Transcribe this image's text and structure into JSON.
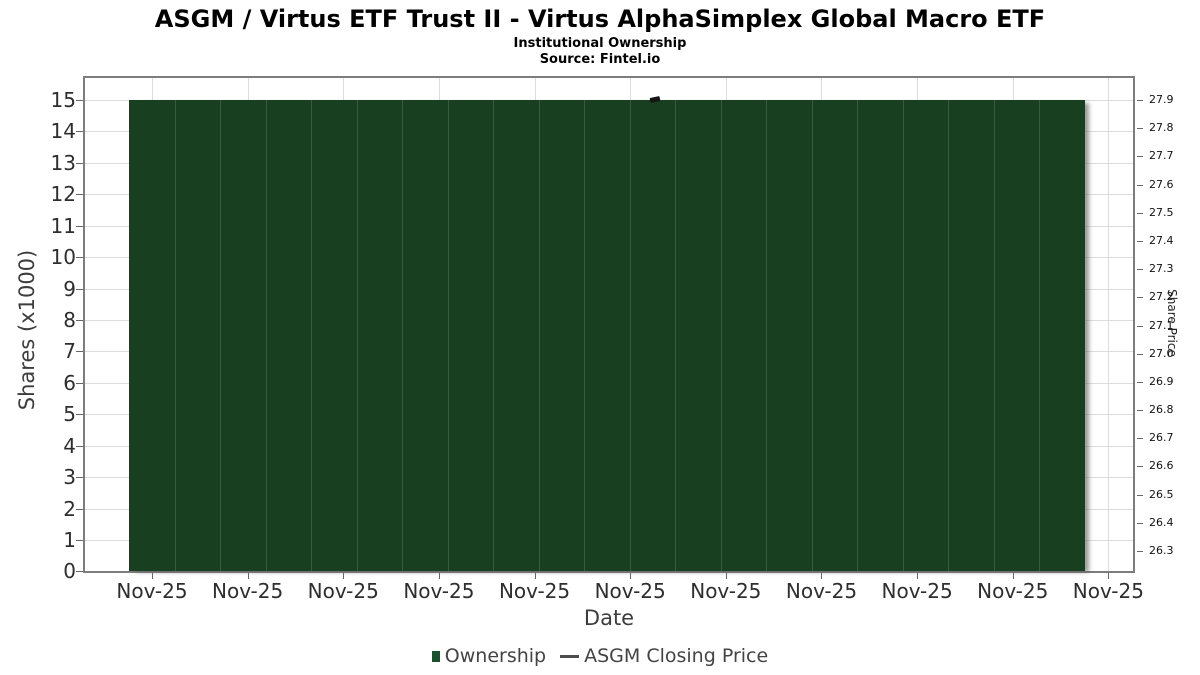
{
  "header": {
    "title": "ASGM / Virtus ETF Trust II - Virtus AlphaSimplex Global Macro ETF",
    "subtitle": "Institutional Ownership",
    "source": "Source: Fintel.io"
  },
  "chart_data": {
    "type": "bar",
    "title": "ASGM / Virtus ETF Trust II - Virtus AlphaSimplex Global Macro ETF",
    "subtitle": "Institutional Ownership",
    "source": "Source: Fintel.io",
    "xlabel": "Date",
    "ylabel": "Shares (x1000)",
    "y2label": "Share Price",
    "grid": true,
    "legend_position": "bottom",
    "x_tick_labels": [
      "Nov-25",
      "Nov-25",
      "Nov-25",
      "Nov-25",
      "Nov-25",
      "Nov-25",
      "Nov-25",
      "Nov-25",
      "Nov-25",
      "Nov-25",
      "Nov-25"
    ],
    "left_axis": {
      "label": "Shares (x1000)",
      "ticks": [
        15,
        14,
        13,
        12,
        11,
        10,
        9,
        8,
        7,
        6,
        5,
        4,
        3,
        2,
        1,
        0
      ],
      "range": [
        0,
        15.75
      ]
    },
    "right_axis": {
      "label": "Share Price",
      "ticks": [
        "27.9",
        "27.8",
        "27.7",
        "27.6",
        "27.5",
        "27.4",
        "27.3",
        "27.2",
        "27.1",
        "27.0",
        "26.9",
        "26.8",
        "26.7",
        "26.6",
        "26.5",
        "26.4",
        "26.3"
      ],
      "range": [
        26.28,
        27.97
      ]
    },
    "series": [
      {
        "name": "Ownership",
        "type": "bar",
        "color": "#183f1f",
        "values_unit": "thousand shares",
        "values": [
          15,
          15,
          15,
          15,
          15,
          15,
          15,
          15,
          15,
          15,
          15,
          15,
          15,
          15,
          15,
          15,
          15,
          15,
          15,
          15,
          15
        ]
      },
      {
        "name": "ASGM Closing Price",
        "type": "line",
        "color": "#1a1a1a",
        "axis": "right",
        "points": [
          {
            "x_frac": 0.55,
            "value": 27.9
          }
        ]
      }
    ]
  },
  "legend": {
    "items": [
      {
        "label": "Ownership",
        "marker": "square",
        "color": "#1c5130"
      },
      {
        "label": "ASGM Closing Price",
        "marker": "dash",
        "color": "#4d4d4d"
      }
    ]
  },
  "colors": {
    "bar_fill": "#183f1f",
    "bar_separator": "rgba(255,255,255,0.14)",
    "gridline": "#dcdcdc",
    "plot_border": "#7d7d7d",
    "price_marker": "#161616"
  }
}
